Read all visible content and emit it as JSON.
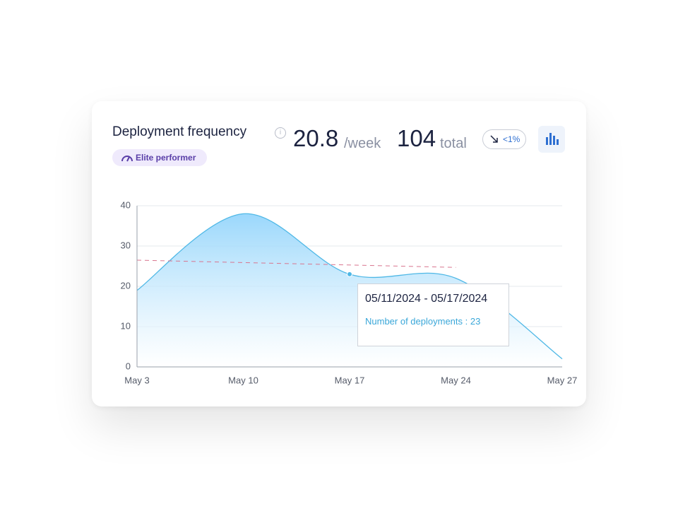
{
  "header": {
    "title": "Deployment frequency",
    "badge": "Elite performer",
    "rate": 20.8,
    "rate_unit": "/week",
    "total": 104,
    "total_unit": "total",
    "trend": "<1%"
  },
  "chart_data": {
    "type": "area",
    "categories": [
      "May 3",
      "May 10",
      "May 17",
      "May 24",
      "May 27"
    ],
    "values": [
      19,
      38,
      23,
      22,
      2
    ],
    "color": "#4fb8e6",
    "trendline": [
      26.5,
      24.7
    ],
    "trendline_color": "#d9758f",
    "ylim": [
      0,
      40
    ],
    "yticks": [
      0,
      10,
      20,
      30,
      40
    ],
    "grid": true,
    "tooltip": {
      "title": "05/11/2024 - 05/17/2024",
      "text": "Number of deployments : 23"
    }
  }
}
